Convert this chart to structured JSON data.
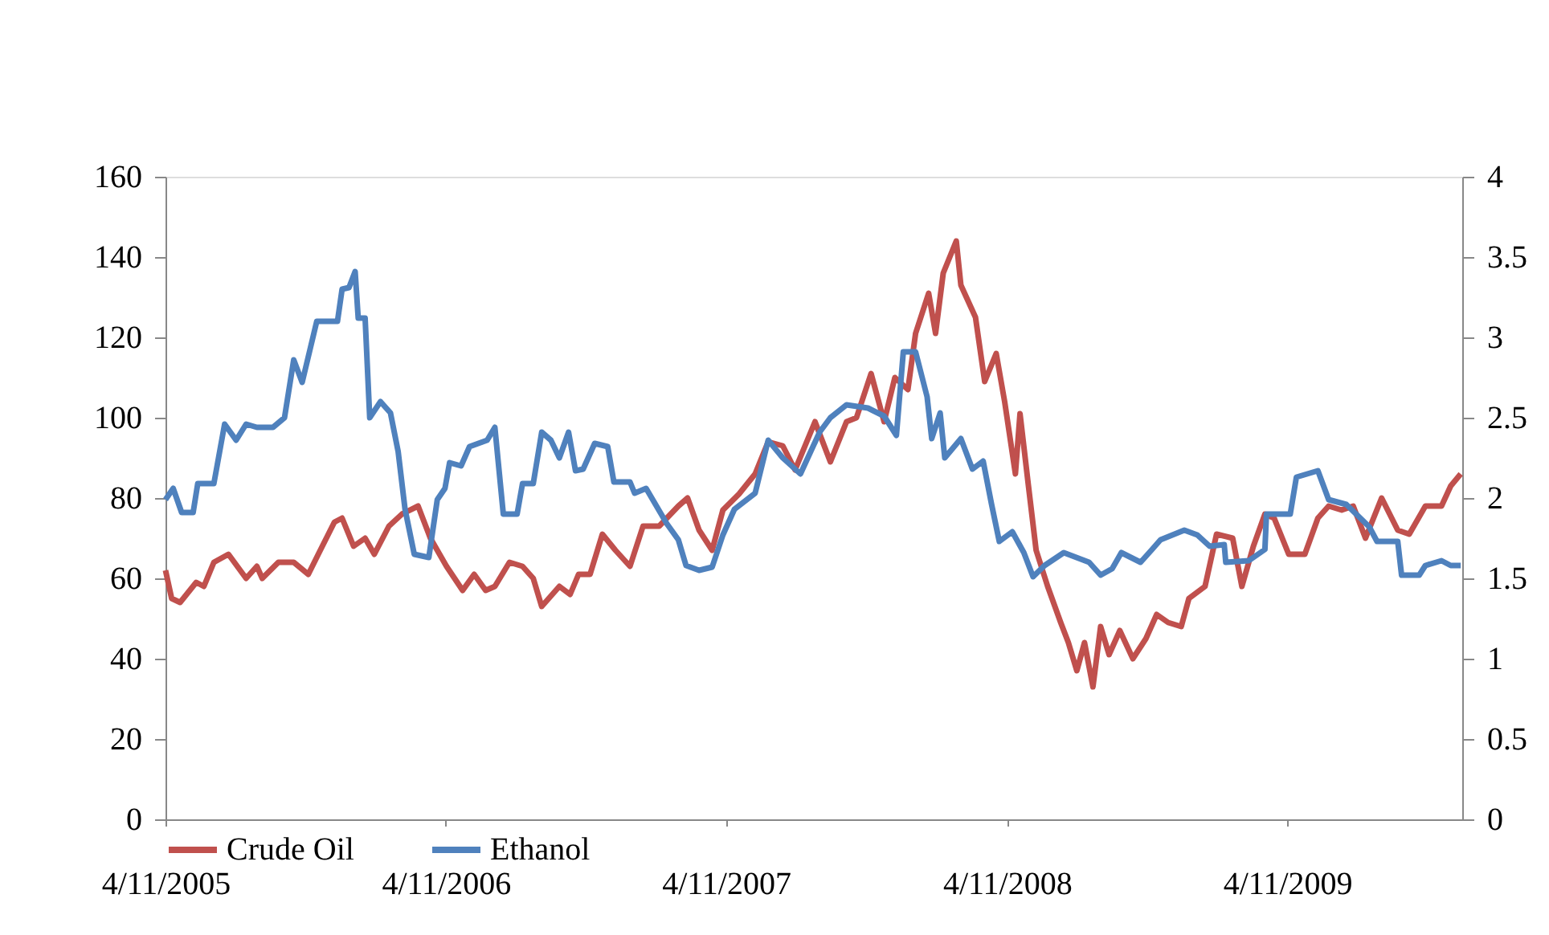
{
  "chart_data": {
    "type": "line",
    "legend": "bottom",
    "grid": false,
    "marker": "none",
    "line_style": "solid",
    "xlim": [
      "2005-04-11",
      "2009-11-25"
    ],
    "xticks": [
      {
        "value": "2005-04-11",
        "label": "4/11/2005"
      },
      {
        "value": "2006-04-11",
        "label": "4/11/2006"
      },
      {
        "value": "2007-04-11",
        "label": "4/11/2007"
      },
      {
        "value": "2008-04-11",
        "label": "4/11/2008"
      },
      {
        "value": "2009-04-11",
        "label": "4/11/2009"
      }
    ],
    "ylim": [
      0,
      160
    ],
    "yticks": [
      0,
      20,
      40,
      60,
      80,
      100,
      120,
      140,
      160
    ],
    "y2lim": [
      0,
      4
    ],
    "y2ticks": [
      0,
      0.5,
      1,
      1.5,
      2,
      2.5,
      3,
      3.5,
      4
    ],
    "series": [
      {
        "name": "Crude Oil",
        "color": "#c0504d",
        "x": [
          "2005-04-11",
          "2005-04-19",
          "2005-04-30",
          "2005-05-21",
          "2005-05-31",
          "2005-06-13",
          "2005-07-02",
          "2005-07-25",
          "2005-08-08",
          "2005-08-15",
          "2005-09-05",
          "2005-09-25",
          "2005-10-14",
          "2005-10-27",
          "2005-11-17",
          "2005-11-27",
          "2005-12-12",
          "2005-12-27",
          "2006-01-08",
          "2006-01-27",
          "2006-02-13",
          "2006-03-06",
          "2006-03-22",
          "2006-04-12",
          "2006-05-03",
          "2006-05-18",
          "2006-06-02",
          "2006-06-14",
          "2006-07-03",
          "2006-07-20",
          "2006-08-03",
          "2006-08-14",
          "2006-09-06",
          "2006-09-20",
          "2006-10-01",
          "2006-10-16",
          "2006-11-01",
          "2006-11-18",
          "2006-12-07",
          "2006-12-24",
          "2007-01-14",
          "2007-02-08",
          "2007-02-20",
          "2007-03-07",
          "2007-03-24",
          "2007-04-07",
          "2007-04-28",
          "2007-05-19",
          "2007-06-05",
          "2007-06-24",
          "2007-07-10",
          "2007-08-05",
          "2007-08-25",
          "2007-09-15",
          "2007-09-28",
          "2007-10-17",
          "2007-11-03",
          "2007-11-17",
          "2007-12-04",
          "2007-12-14",
          "2007-12-31",
          "2008-01-09",
          "2008-01-19",
          "2008-02-05",
          "2008-02-11",
          "2008-03-01",
          "2008-03-13",
          "2008-03-28",
          "2008-04-08",
          "2008-04-22",
          "2008-04-28",
          "2008-05-09",
          "2008-05-19",
          "2008-06-03",
          "2008-06-20",
          "2008-06-30",
          "2008-07-11",
          "2008-07-21",
          "2008-08-01",
          "2008-08-11",
          "2008-08-22",
          "2008-09-05",
          "2008-09-22",
          "2008-10-09",
          "2008-10-23",
          "2008-11-07",
          "2008-11-24",
          "2008-12-04",
          "2008-12-25",
          "2009-01-09",
          "2009-01-30",
          "2009-02-11",
          "2009-02-26",
          "2009-03-13",
          "2009-03-25",
          "2009-04-13",
          "2009-05-04",
          "2009-05-21",
          "2009-06-04",
          "2009-06-21",
          "2009-07-06",
          "2009-07-22",
          "2009-08-12",
          "2009-09-02",
          "2009-09-17",
          "2009-10-08",
          "2009-10-29",
          "2009-11-10",
          "2009-11-23"
        ],
        "values": [
          62,
          55,
          54,
          59,
          58,
          64,
          66,
          60,
          63,
          60,
          64,
          64,
          61,
          66,
          74,
          75,
          68,
          70,
          66,
          73,
          76,
          78,
          70,
          63,
          57,
          61,
          57,
          58,
          64,
          63,
          60,
          53,
          58,
          56,
          61,
          61,
          71,
          67,
          63,
          73,
          73,
          78,
          80,
          72,
          67,
          77,
          81,
          86,
          94,
          93,
          87,
          99,
          89,
          99,
          100,
          111,
          99,
          110,
          107,
          121,
          131,
          121,
          136,
          144,
          133,
          125,
          109,
          116,
          104,
          86,
          101,
          83,
          67,
          58,
          49,
          44,
          37,
          44,
          33,
          48,
          41,
          47,
          40,
          45,
          51,
          49,
          48,
          55,
          58,
          71,
          70,
          58,
          68,
          76,
          75,
          66,
          66,
          75,
          78,
          77,
          78,
          70,
          80,
          72,
          71,
          78,
          78,
          83,
          86
        ]
      },
      {
        "name": "Ethanol",
        "color": "#4f81bd",
        "axis": "y2",
        "x": [
          "2005-04-11",
          "2005-04-21",
          "2005-05-02",
          "2005-05-17",
          "2005-05-23",
          "2005-06-13",
          "2005-06-27",
          "2005-07-12",
          "2005-07-25",
          "2005-08-08",
          "2005-08-29",
          "2005-09-13",
          "2005-09-25",
          "2005-10-06",
          "2005-10-25",
          "2005-11-21",
          "2005-11-27",
          "2005-12-06",
          "2005-12-14",
          "2005-12-18",
          "2005-12-27",
          "2006-01-02",
          "2006-01-16",
          "2006-01-29",
          "2006-02-08",
          "2006-02-17",
          "2006-03-01",
          "2006-03-20",
          "2006-03-31",
          "2006-04-10",
          "2006-04-16",
          "2006-05-01",
          "2006-05-12",
          "2006-06-04",
          "2006-06-14",
          "2006-06-25",
          "2006-07-13",
          "2006-07-20",
          "2006-08-03",
          "2006-08-14",
          "2006-08-26",
          "2006-09-06",
          "2006-09-18",
          "2006-09-27",
          "2006-10-07",
          "2006-10-22",
          "2006-11-08",
          "2006-11-16",
          "2006-12-07",
          "2006-12-13",
          "2006-12-28",
          "2007-01-24",
          "2007-02-08",
          "2007-02-18",
          "2007-03-07",
          "2007-03-24",
          "2007-04-07",
          "2007-04-22",
          "2007-05-19",
          "2007-06-05",
          "2007-06-24",
          "2007-07-17",
          "2007-08-11",
          "2007-08-25",
          "2007-09-15",
          "2007-10-13",
          "2007-11-03",
          "2007-11-19",
          "2007-11-28",
          "2007-12-14",
          "2007-12-29",
          "2008-01-04",
          "2008-01-15",
          "2008-01-21",
          "2008-02-11",
          "2008-02-26",
          "2008-03-11",
          "2008-03-22",
          "2008-04-01",
          "2008-04-18",
          "2008-05-03",
          "2008-05-15",
          "2008-05-30",
          "2008-06-24",
          "2008-07-27",
          "2008-08-11",
          "2008-08-26",
          "2008-09-07",
          "2008-10-02",
          "2008-10-17",
          "2008-10-28",
          "2008-11-28",
          "2008-12-15",
          "2008-12-31",
          "2009-01-19",
          "2009-01-21",
          "2009-02-20",
          "2009-03-13",
          "2009-03-15",
          "2009-04-15",
          "2009-04-23",
          "2009-05-21",
          "2009-06-04",
          "2009-06-27",
          "2009-07-27",
          "2009-08-06",
          "2009-09-02",
          "2009-09-07",
          "2009-09-30",
          "2009-10-08",
          "2009-10-29",
          "2009-11-10",
          "2009-11-23"
        ],
        "values": [
          1.99,
          2.06,
          1.91,
          1.91,
          2.09,
          2.09,
          2.46,
          2.36,
          2.46,
          2.44,
          2.44,
          2.5,
          2.86,
          2.72,
          3.1,
          3.1,
          3.3,
          3.31,
          3.41,
          3.12,
          3.12,
          2.5,
          2.6,
          2.53,
          2.29,
          1.93,
          1.65,
          1.63,
          1.99,
          2.06,
          2.22,
          2.2,
          2.32,
          2.36,
          2.44,
          1.9,
          1.9,
          2.09,
          2.09,
          2.41,
          2.36,
          2.25,
          2.41,
          2.17,
          2.18,
          2.34,
          2.32,
          2.1,
          2.1,
          2.03,
          2.06,
          1.84,
          1.74,
          1.58,
          1.55,
          1.57,
          1.77,
          1.93,
          2.03,
          2.36,
          2.25,
          2.15,
          2.41,
          2.5,
          2.58,
          2.56,
          2.51,
          2.39,
          2.91,
          2.91,
          2.63,
          2.37,
          2.53,
          2.25,
          2.37,
          2.18,
          2.23,
          1.96,
          1.73,
          1.79,
          1.66,
          1.51,
          1.58,
          1.66,
          1.6,
          1.52,
          1.56,
          1.66,
          1.6,
          1.68,
          1.74,
          1.8,
          1.77,
          1.7,
          1.71,
          1.6,
          1.61,
          1.68,
          1.9,
          1.9,
          2.13,
          2.17,
          1.99,
          1.96,
          1.82,
          1.73,
          1.73,
          1.52,
          1.52,
          1.58,
          1.61,
          1.58,
          1.58
        ]
      }
    ]
  }
}
